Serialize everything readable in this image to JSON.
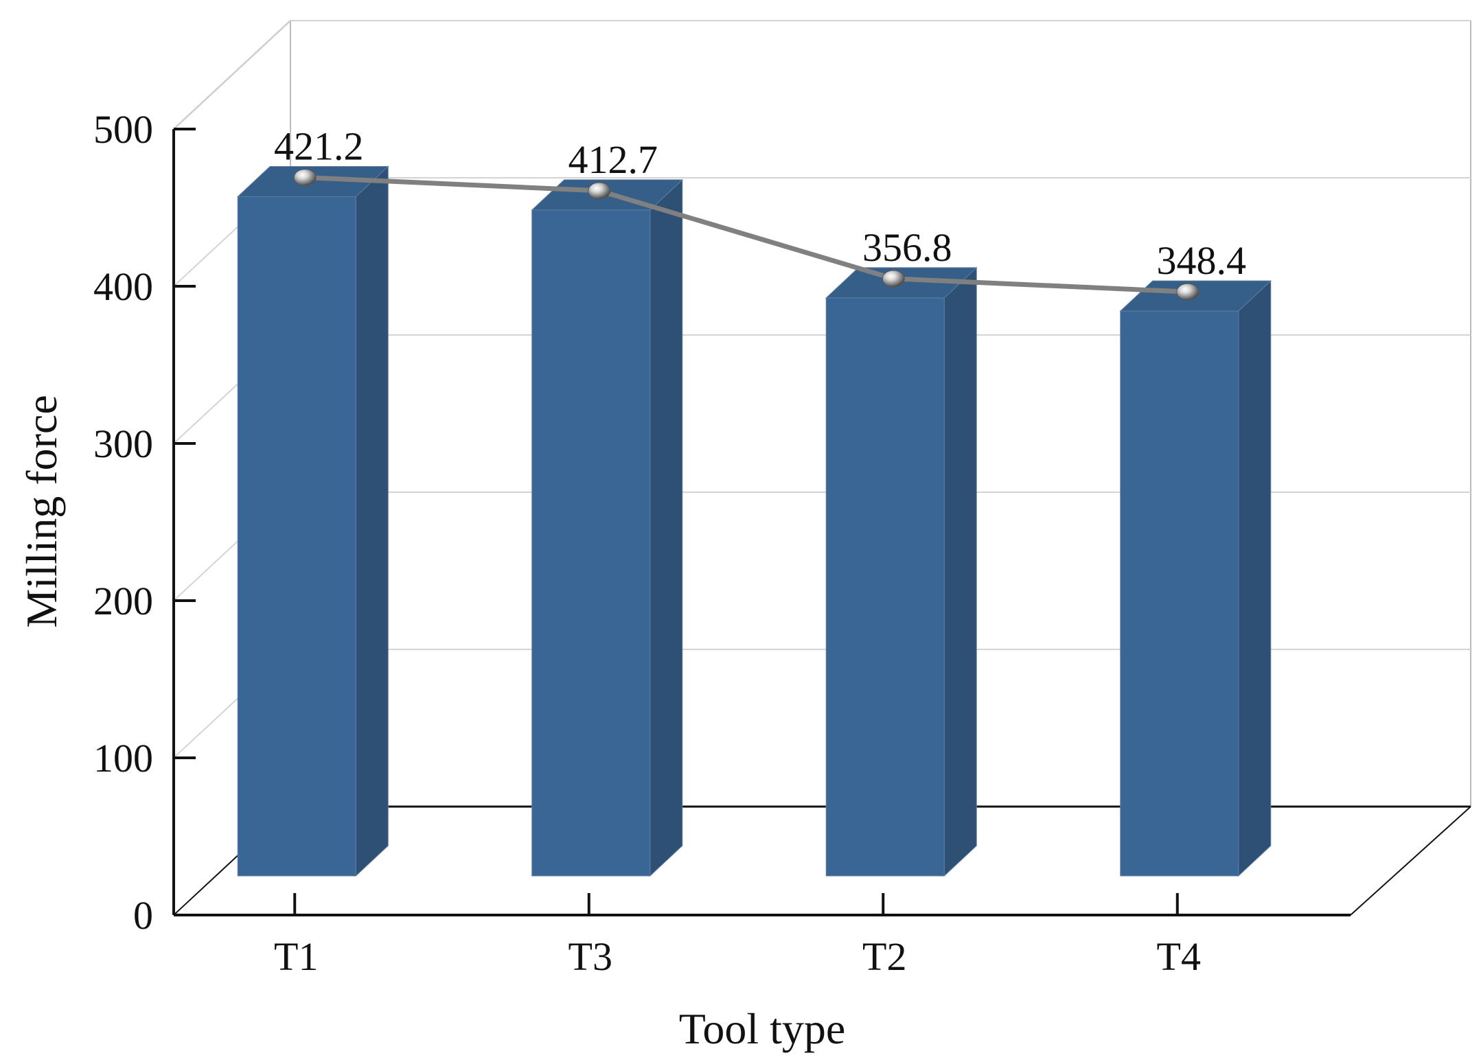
{
  "chart_data": {
    "type": "bar",
    "style": "3d-bar-with-line",
    "categories": [
      "T1",
      "T3",
      "T2",
      "T4"
    ],
    "series": [
      {
        "values": [
          421.2,
          412.7,
          356.8,
          348.4
        ],
        "data_labels": [
          "421.2",
          "412.7",
          "356.8",
          "348.4"
        ],
        "bar_color": "#3a6695",
        "line_color": "#808080"
      }
    ],
    "xlabel": "Tool type",
    "ylabel": "Milling force",
    "ylim": [
      0,
      500
    ],
    "yticks": [
      "0",
      "100",
      "200",
      "300",
      "400",
      "500"
    ],
    "grid": true,
    "legend": "none"
  }
}
